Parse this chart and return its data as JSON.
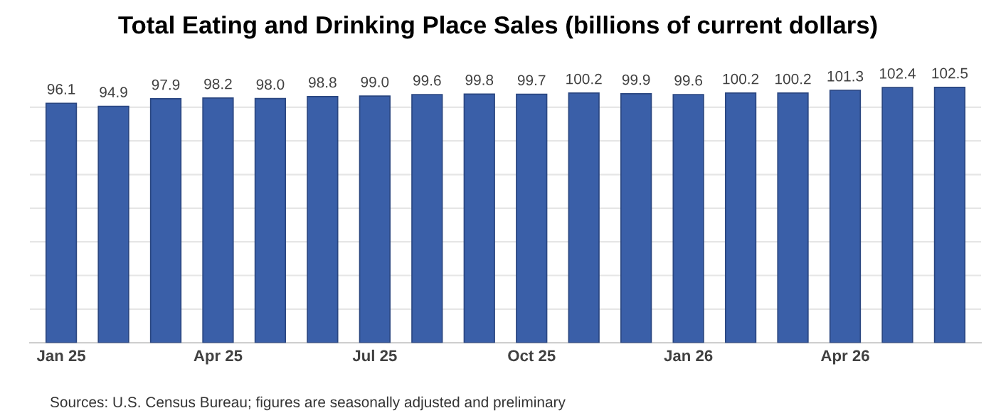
{
  "chart_data": {
    "type": "bar",
    "title": "Total Eating and Drinking Place Sales (billions of current dollars)",
    "categories": [
      "Jan 25",
      null,
      null,
      "Apr 25",
      null,
      null,
      "Jul 25",
      null,
      null,
      "Oct 25",
      null,
      null,
      "Jan 26",
      null,
      null,
      "Apr 26",
      null,
      null
    ],
    "values": [
      96.1,
      94.9,
      97.9,
      98.2,
      98.0,
      98.8,
      99.0,
      99.6,
      99.8,
      99.7,
      100.2,
      99.9,
      99.6,
      100.2,
      100.2,
      101.3,
      102.4,
      102.5
    ],
    "color": "#3a5fa8",
    "value_labels": [
      "96.1",
      "94.9",
      "97.9",
      "98.2",
      "98.0",
      "98.8",
      "99.0",
      "99.6",
      "99.8",
      "99.7",
      "100.2",
      "99.9",
      "99.6",
      "100.2",
      "100.2",
      "101.3",
      "102.4",
      "102.5"
    ],
    "yticks": [
      {
        "value": 0,
        "label": null
      },
      {
        "value": 13.5,
        "label": null
      },
      {
        "value": 27,
        "label": null
      },
      {
        "value": 40.5,
        "label": null
      },
      {
        "value": 54,
        "label": null
      },
      {
        "value": 67.5,
        "label": null
      },
      {
        "value": 81,
        "label": null
      },
      {
        "value": 94.5,
        "label": null
      }
    ],
    "grid": "y",
    "annotations": [
      "Sources: U.S. Census Bureau; figures are seasonally adjusted and preliminary"
    ]
  }
}
